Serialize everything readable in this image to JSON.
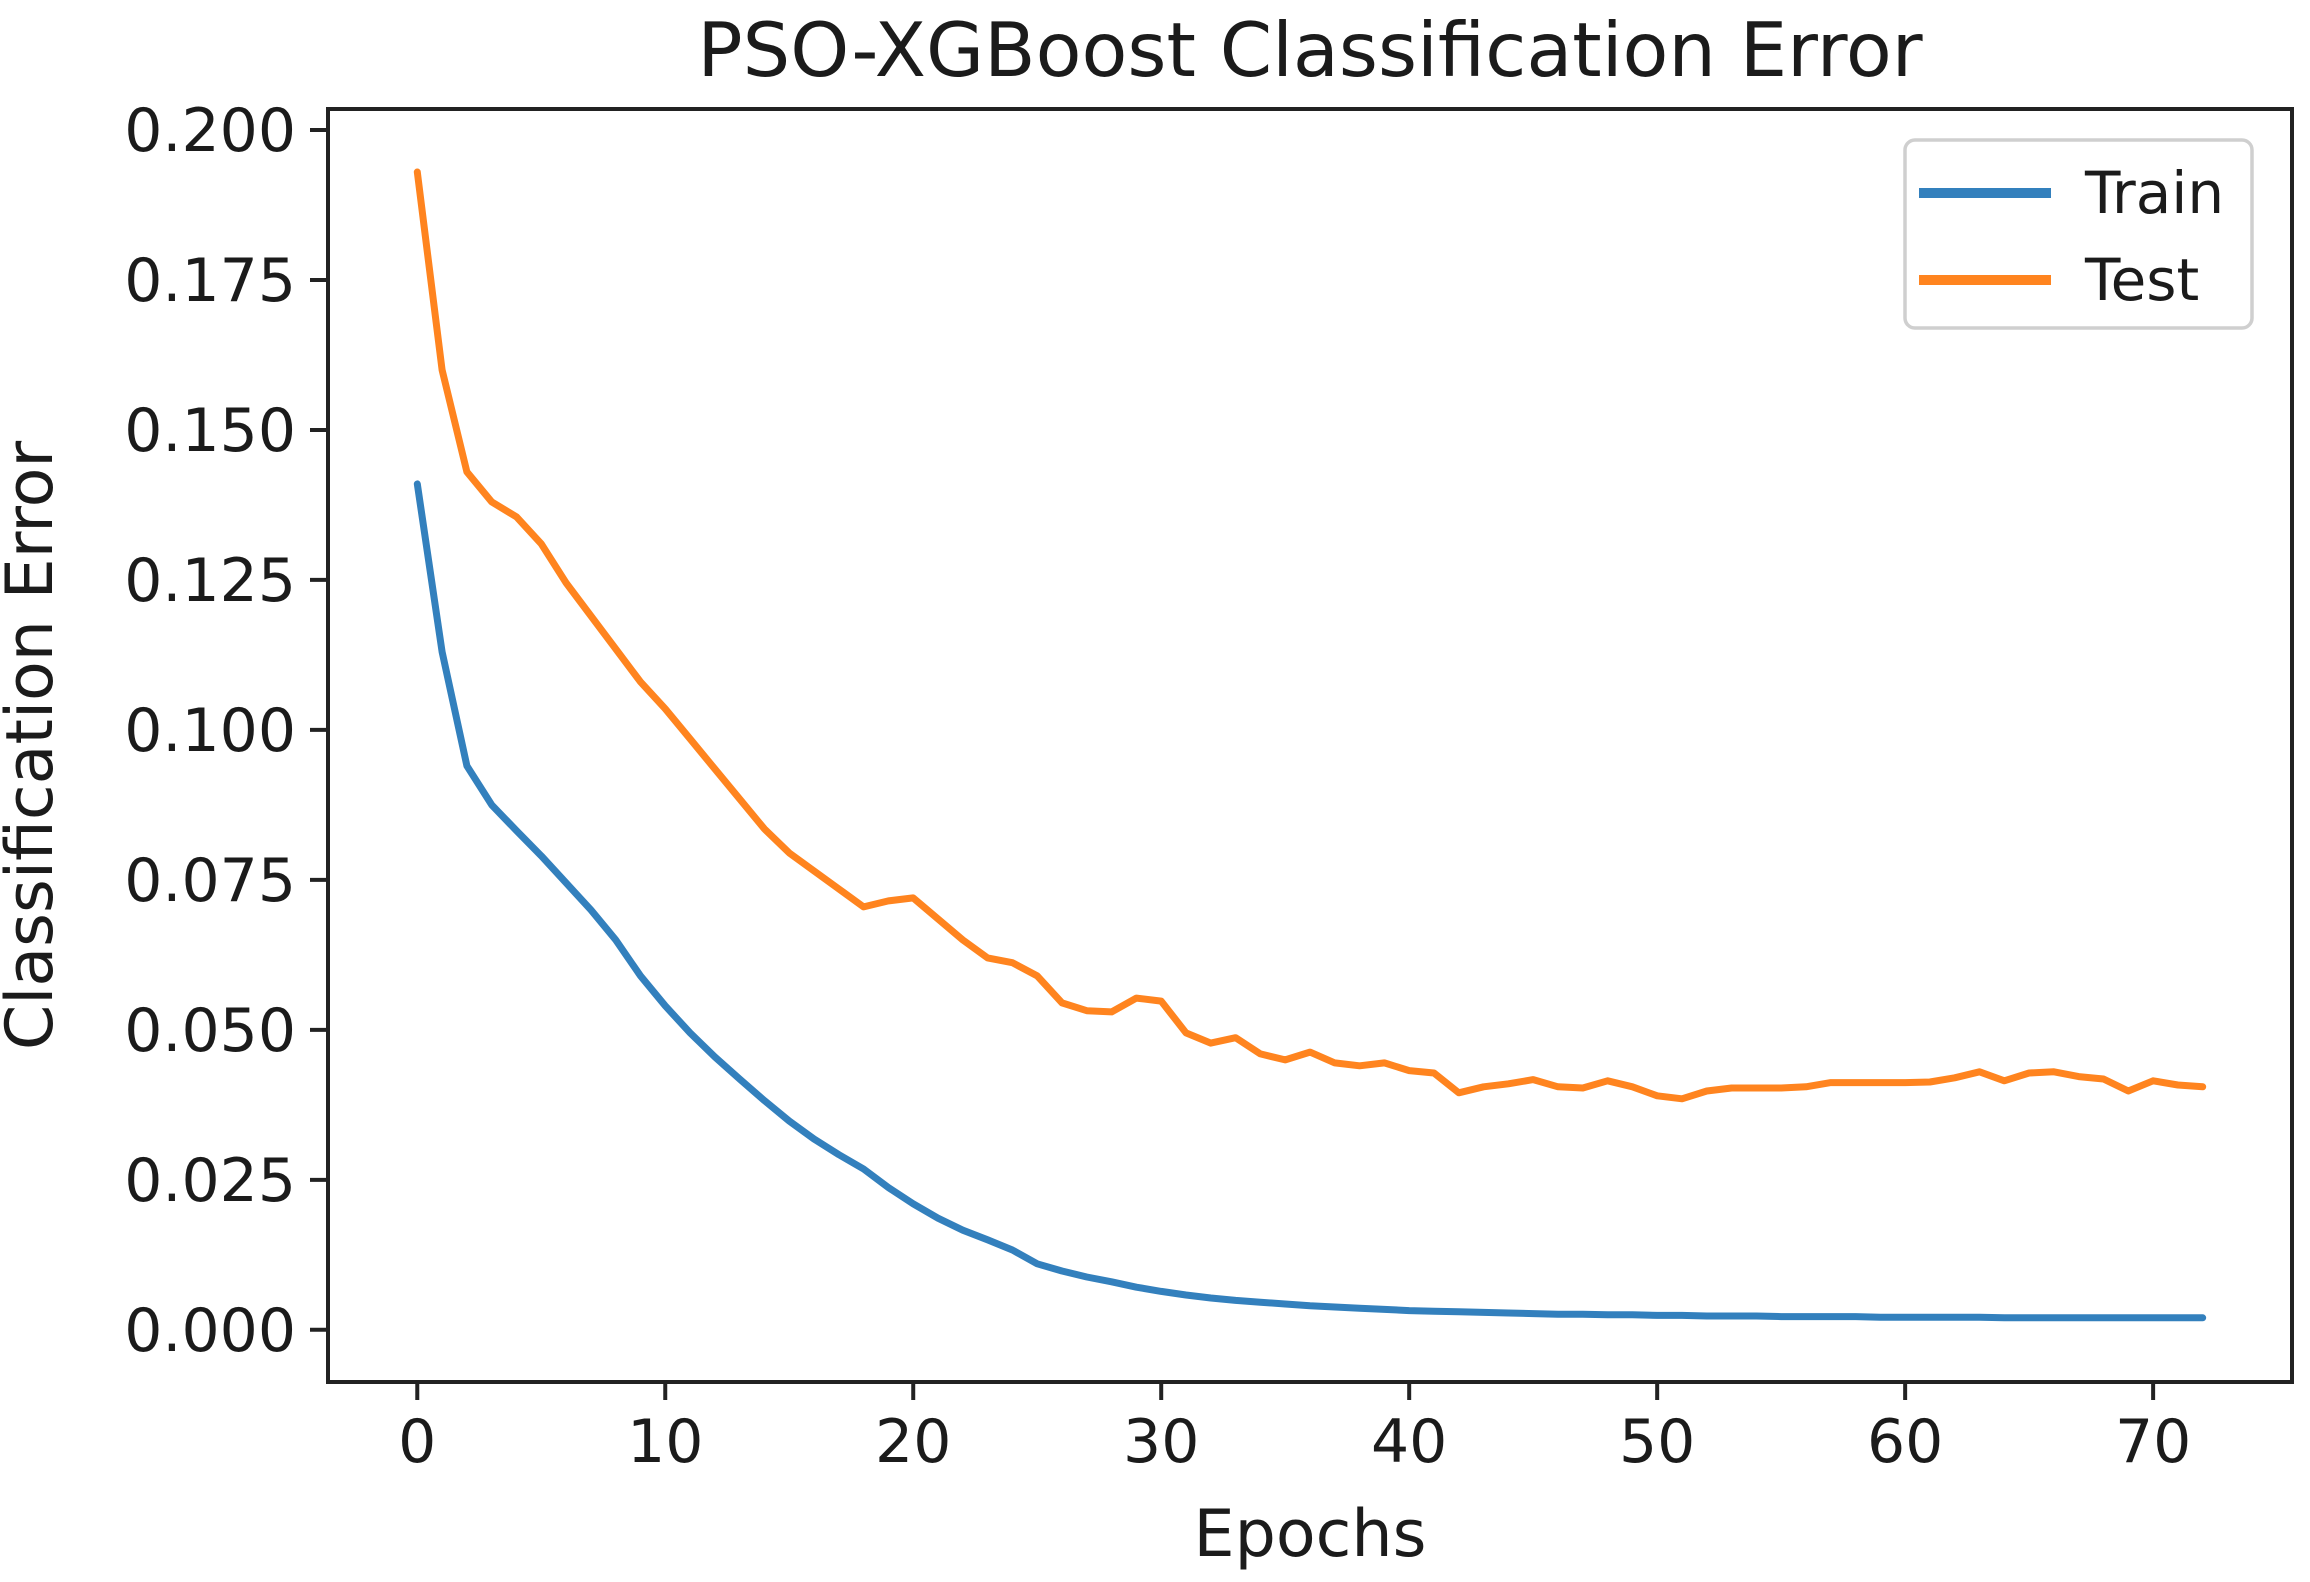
{
  "figure": {
    "title": "PSO-XGBoost Classification Error",
    "xlabel": "Epochs",
    "ylabel": "Classification Error"
  },
  "legend": {
    "position": "upper right",
    "items": [
      {
        "label": "Train",
        "color": "#3380bd"
      },
      {
        "label": "Test",
        "color": "#ff841f"
      }
    ]
  },
  "colors": {
    "train_line": "#3380bd",
    "test_line": "#ff841f",
    "axis": "#222222",
    "text": "#1b1b1b",
    "legend_border": "#cfcfcf",
    "background": "#ffffff"
  },
  "chart_data": {
    "type": "line",
    "title": "PSO-XGBoost Classification Error",
    "xlabel": "Epochs",
    "ylabel": "Classification Error",
    "grid": false,
    "legend_position": "upper right",
    "xlim": [
      -3.6,
      75.6
    ],
    "ylim": [
      -0.0087,
      0.2035
    ],
    "xticks": [
      0,
      10,
      20,
      30,
      40,
      50,
      60,
      70
    ],
    "yticks": [
      0.0,
      0.025,
      0.05,
      0.075,
      0.1,
      0.125,
      0.15,
      0.175,
      0.2
    ],
    "ytick_decimals": 3,
    "x": [
      0,
      1,
      2,
      3,
      4,
      5,
      6,
      7,
      8,
      9,
      10,
      11,
      12,
      13,
      14,
      15,
      16,
      17,
      18,
      19,
      20,
      21,
      22,
      23,
      24,
      25,
      26,
      27,
      28,
      29,
      30,
      31,
      32,
      33,
      34,
      35,
      36,
      37,
      38,
      39,
      40,
      41,
      42,
      43,
      44,
      45,
      46,
      47,
      48,
      49,
      50,
      51,
      52,
      53,
      54,
      55,
      56,
      57,
      58,
      59,
      60,
      61,
      62,
      63,
      64,
      65,
      66,
      67,
      68,
      69,
      70,
      71,
      72
    ],
    "series": [
      {
        "name": "Train",
        "color": "#3380bd",
        "values": [
          0.141,
          0.113,
          0.094,
          0.0875,
          0.0832,
          0.079,
          0.0745,
          0.07,
          0.065,
          0.059,
          0.054,
          0.0495,
          0.0455,
          0.0418,
          0.0382,
          0.0348,
          0.0318,
          0.0292,
          0.0268,
          0.0237,
          0.021,
          0.0186,
          0.0166,
          0.015,
          0.0133,
          0.011,
          0.0098,
          0.0088,
          0.008,
          0.0071,
          0.0064,
          0.0058,
          0.0053,
          0.0049,
          0.0046,
          0.0043,
          0.004,
          0.0038,
          0.0036,
          0.0034,
          0.0032,
          0.0031,
          0.003,
          0.0029,
          0.0028,
          0.0027,
          0.0026,
          0.0026,
          0.0025,
          0.0025,
          0.0024,
          0.0024,
          0.0023,
          0.0023,
          0.0023,
          0.0022,
          0.0022,
          0.0022,
          0.0022,
          0.0021,
          0.0021,
          0.0021,
          0.0021,
          0.0021,
          0.002,
          0.002,
          0.002,
          0.002,
          0.002,
          0.002,
          0.002,
          0.002,
          0.002
        ]
      },
      {
        "name": "Test",
        "color": "#ff841f",
        "values": [
          0.193,
          0.16,
          0.143,
          0.138,
          0.1355,
          0.131,
          0.1245,
          0.119,
          0.1135,
          0.108,
          0.1035,
          0.0985,
          0.0935,
          0.0885,
          0.0835,
          0.0795,
          0.0765,
          0.0735,
          0.0705,
          0.0715,
          0.072,
          0.0685,
          0.065,
          0.062,
          0.0612,
          0.059,
          0.0545,
          0.0532,
          0.053,
          0.0553,
          0.0548,
          0.0495,
          0.0478,
          0.0487,
          0.046,
          0.045,
          0.0463,
          0.0445,
          0.044,
          0.0445,
          0.0432,
          0.0428,
          0.0395,
          0.0405,
          0.041,
          0.0417,
          0.0405,
          0.0403,
          0.0415,
          0.0405,
          0.039,
          0.0385,
          0.0398,
          0.0403,
          0.0403,
          0.0403,
          0.0405,
          0.0412,
          0.0412,
          0.0412,
          0.0412,
          0.0413,
          0.042,
          0.043,
          0.0415,
          0.0428,
          0.043,
          0.0422,
          0.0418,
          0.0398,
          0.0415,
          0.0408,
          0.0405
        ]
      }
    ]
  }
}
